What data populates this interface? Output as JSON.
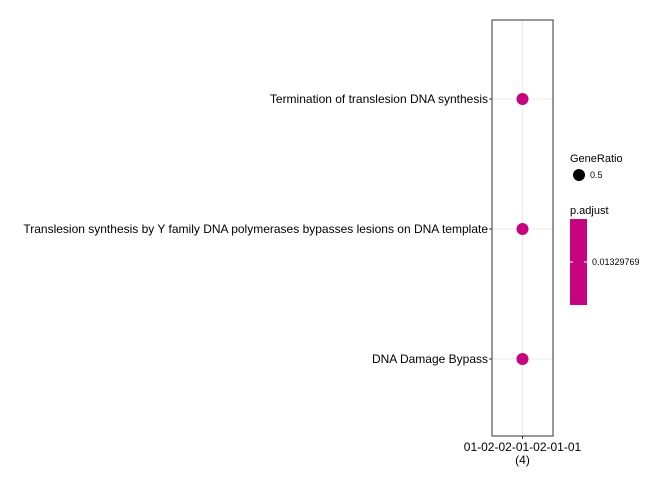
{
  "chart_data": {
    "type": "scatter",
    "title": "",
    "xlabel": "",
    "ylabel": "",
    "x_categories": [
      {
        "label": "01-02-02-01-02-01-01",
        "count": "(4)"
      }
    ],
    "y_categories": [
      "Termination of translesion DNA synthesis",
      "Translesion synthesis by Y family DNA polymerases bypasses lesions on DNA template",
      "DNA Damage Bypass"
    ],
    "points": [
      {
        "x": "01-02-02-01-02-01-01",
        "y": "Termination of translesion DNA synthesis",
        "GeneRatio": 0.5,
        "p_adjust": 0.01329769
      },
      {
        "x": "01-02-02-01-02-01-01",
        "y": "Translesion synthesis by Y family DNA polymerases bypasses lesions on DNA template",
        "GeneRatio": 0.5,
        "p_adjust": 0.01329769
      },
      {
        "x": "01-02-02-01-02-01-01",
        "y": "DNA Damage Bypass",
        "GeneRatio": 0.5,
        "p_adjust": 0.01329769
      }
    ],
    "grid": true,
    "legend_position": "right",
    "size_legend": {
      "title": "GeneRatio",
      "values": [
        0.5
      ]
    },
    "color_legend": {
      "title": "p.adjust",
      "ticks": [
        "0.01329769"
      ]
    },
    "colors": {
      "point": "#c6047f",
      "size_key": "#000000",
      "panel_border": "#333333",
      "grid": "#ebebeb"
    }
  }
}
